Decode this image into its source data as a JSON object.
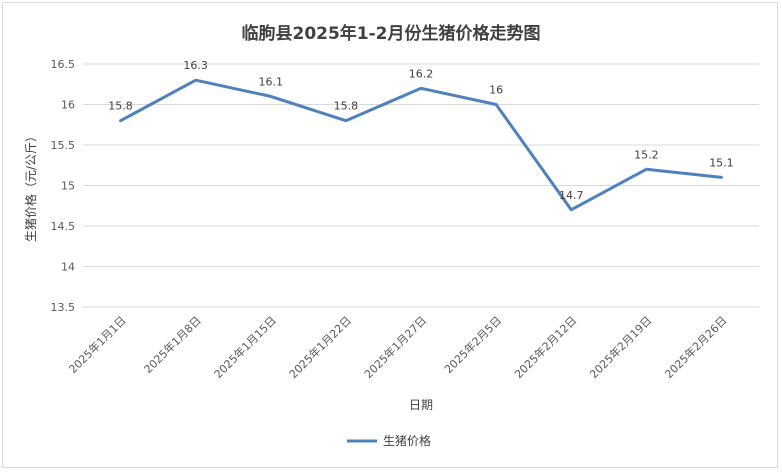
{
  "chart_data": {
    "type": "line",
    "title": "临朐县2025年1-2月份生猪价格走势图",
    "xlabel": "日期",
    "ylabel": "生猪价格（元/公斤）",
    "categories": [
      "2025年1月1日",
      "2025年1月8日",
      "2025年1月15日",
      "2025年1月22日",
      "2025年1月27日",
      "2025年2月5日",
      "2025年2月12日",
      "2025年2月19日",
      "2025年2月26日"
    ],
    "series": [
      {
        "name": "生猪价格",
        "values": [
          15.8,
          16.3,
          16.1,
          15.8,
          16.2,
          16.0,
          14.7,
          15.2,
          15.1
        ],
        "color": "#4f81bd"
      }
    ],
    "data_labels": [
      "15.8",
      "16.3",
      "16.1",
      "15.8",
      "16.2",
      "16",
      "14.7",
      "15.2",
      "15.1"
    ],
    "yticks": [
      "13.5",
      "14",
      "14.5",
      "15",
      "15.5",
      "16",
      "16.5"
    ],
    "ylim": [
      13.5,
      16.5
    ],
    "grid": true,
    "legend_position": "bottom"
  }
}
